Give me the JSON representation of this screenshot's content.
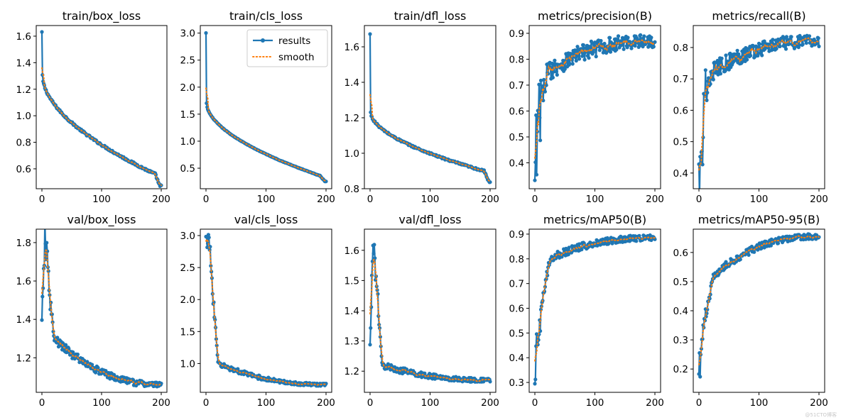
{
  "colors": {
    "results": "#1f77b4",
    "smooth": "#ff7f0e"
  },
  "legend": {
    "results": "results",
    "smooth": "smooth",
    "location": "upper right",
    "shown_in": "train/cls_loss"
  },
  "watermark": "@51CTO博客",
  "chart_data": [
    {
      "type": "line",
      "title": "train/box_loss",
      "xlim": [
        0,
        200
      ],
      "ylim": [
        0.45,
        1.68
      ],
      "xticks": [
        0,
        100,
        200
      ],
      "xtick_labels": [
        "0",
        "100",
        "200"
      ],
      "yticks": [
        0.6,
        0.8,
        1.0,
        1.2,
        1.4,
        1.6
      ],
      "ytick_labels": [
        "0.6",
        "0.8",
        "1.0",
        "1.2",
        "1.4",
        "1.6"
      ],
      "profile": {
        "first": 1.63,
        "after_first": 1.3,
        "mid": 0.77,
        "mid_x": 100,
        "pre_final": 0.56,
        "final": 0.47,
        "drop_at": 190
      },
      "noise": 0.008
    },
    {
      "type": "line",
      "title": "train/cls_loss",
      "xlim": [
        0,
        200
      ],
      "ylim": [
        0.12,
        3.14
      ],
      "xticks": [
        0,
        100,
        200
      ],
      "xtick_labels": [
        "0",
        "100",
        "200"
      ],
      "yticks": [
        0.5,
        1.0,
        1.5,
        2.0,
        2.5,
        3.0
      ],
      "ytick_labels": [
        "0.5",
        "1.0",
        "1.5",
        "2.0",
        "2.5",
        "3.0"
      ],
      "profile": {
        "first": 3.0,
        "after_first": 1.7,
        "mid": 0.5,
        "mid_x": 100,
        "pre_final": 0.36,
        "final": 0.26,
        "drop_at": 190
      },
      "noise": 0.005
    },
    {
      "type": "line",
      "title": "train/dfl_loss",
      "xlim": [
        0,
        200
      ],
      "ylim": [
        0.8,
        1.72
      ],
      "xticks": [
        0,
        100,
        200
      ],
      "xtick_labels": [
        "0",
        "100",
        "200"
      ],
      "yticks": [
        0.8,
        1.0,
        1.2,
        1.4,
        1.6
      ],
      "ytick_labels": [
        "0.8",
        "1.0",
        "1.2",
        "1.4",
        "1.6"
      ],
      "profile": {
        "first": 1.67,
        "after_first": 1.23,
        "mid": 0.96,
        "mid_x": 100,
        "pre_final": 0.9,
        "final": 0.84,
        "drop_at": 190
      },
      "noise": 0.005
    },
    {
      "type": "line",
      "title": "metrics/precision(B)",
      "xlim": [
        0,
        200
      ],
      "ylim": [
        0.3,
        0.93
      ],
      "xticks": [
        0,
        100,
        200
      ],
      "xtick_labels": [
        "0",
        "100",
        "200"
      ],
      "yticks": [
        0.4,
        0.5,
        0.6,
        0.7,
        0.8,
        0.9
      ],
      "ytick_labels": [
        "0.4",
        "0.5",
        "0.6",
        "0.7",
        "0.8",
        "0.9"
      ],
      "profile": {
        "start": 0.35,
        "early": 0.75,
        "early_x": 20,
        "plateau": 0.87
      },
      "noise": 0.04
    },
    {
      "type": "line",
      "title": "metrics/recall(B)",
      "xlim": [
        0,
        200
      ],
      "ylim": [
        0.35,
        0.87
      ],
      "xticks": [
        0,
        100,
        200
      ],
      "xtick_labels": [
        "0",
        "100",
        "200"
      ],
      "yticks": [
        0.4,
        0.5,
        0.6,
        0.7,
        0.8
      ],
      "ytick_labels": [
        "0.4",
        "0.5",
        "0.6",
        "0.7",
        "0.8"
      ],
      "profile": {
        "start": 0.38,
        "early": 0.72,
        "early_x": 20,
        "plateau": 0.82
      },
      "noise": 0.03
    },
    {
      "type": "line",
      "title": "val/box_loss",
      "xlim": [
        0,
        200
      ],
      "ylim": [
        1.02,
        1.87
      ],
      "xticks": [
        0,
        100,
        200
      ],
      "xtick_labels": [
        "0",
        "100",
        "200"
      ],
      "yticks": [
        1.2,
        1.4,
        1.6,
        1.8
      ],
      "ytick_labels": [
        "1.2",
        "1.4",
        "1.6",
        "1.8"
      ],
      "profile": {
        "first": 1.35,
        "peak": 1.84,
        "peak_x": 5,
        "early": 1.3,
        "early_x": 20,
        "final": 1.06
      },
      "noise": 0.025
    },
    {
      "type": "line",
      "title": "val/cls_loss",
      "xlim": [
        0,
        200
      ],
      "ylim": [
        0.55,
        3.1
      ],
      "xticks": [
        0,
        100,
        200
      ],
      "xtick_labels": [
        "0",
        "100",
        "200"
      ],
      "yticks": [
        1.0,
        1.5,
        2.0,
        2.5,
        3.0
      ],
      "ytick_labels": [
        "1.0",
        "1.5",
        "2.0",
        "2.5",
        "3.0"
      ],
      "profile": {
        "first": 2.9,
        "peak": 2.97,
        "peak_x": 5,
        "early": 1.0,
        "early_x": 20,
        "final": 0.67
      },
      "noise": 0.04
    },
    {
      "type": "line",
      "title": "val/dfl_loss",
      "xlim": [
        0,
        200
      ],
      "ylim": [
        1.13,
        1.67
      ],
      "xticks": [
        0,
        100,
        200
      ],
      "xtick_labels": [
        "0",
        "100",
        "200"
      ],
      "yticks": [
        1.2,
        1.3,
        1.4,
        1.5,
        1.6
      ],
      "ytick_labels": [
        "1.2",
        "1.3",
        "1.4",
        "1.5",
        "1.6"
      ],
      "profile": {
        "first": 1.26,
        "peak": 1.65,
        "peak_x": 5,
        "early": 1.22,
        "early_x": 20,
        "final": 1.17
      },
      "noise": 0.012
    },
    {
      "type": "line",
      "title": "metrics/mAP50(B)",
      "xlim": [
        0,
        200
      ],
      "ylim": [
        0.26,
        0.92
      ],
      "xticks": [
        0,
        100,
        200
      ],
      "xtick_labels": [
        "0",
        "100",
        "200"
      ],
      "yticks": [
        0.3,
        0.4,
        0.5,
        0.6,
        0.7,
        0.8,
        0.9
      ],
      "ytick_labels": [
        "0.3",
        "0.4",
        "0.5",
        "0.6",
        "0.7",
        "0.8",
        "0.9"
      ],
      "profile": {
        "start": 0.28,
        "early": 0.8,
        "early_x": 25,
        "plateau": 0.885
      },
      "noise": 0.018
    },
    {
      "type": "line",
      "title": "metrics/mAP50-95(B)",
      "xlim": [
        0,
        200
      ],
      "ylim": [
        0.12,
        0.68
      ],
      "xticks": [
        0,
        100,
        200
      ],
      "xtick_labels": [
        "0",
        "100",
        "200"
      ],
      "yticks": [
        0.2,
        0.3,
        0.4,
        0.5,
        0.6
      ],
      "ytick_labels": [
        "0.2",
        "0.3",
        "0.4",
        "0.5",
        "0.6"
      ],
      "profile": {
        "start": 0.14,
        "early": 0.52,
        "early_x": 25,
        "plateau": 0.655
      },
      "noise": 0.015
    }
  ]
}
